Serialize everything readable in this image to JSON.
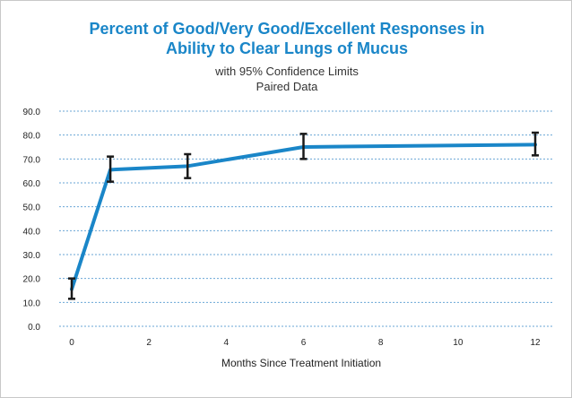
{
  "colors": {
    "line": "#1a86c8",
    "grid": "#6aa6d6",
    "error_bar": "#1a1a1a",
    "title": "#1a86c8"
  },
  "chart_data": {
    "type": "line",
    "title": "Percent of Good/Very Good/Excellent Responses in\nAbility to Clear Lungs of Mucus",
    "subtitle": "with 95% Confidence Limits\nPaired Data",
    "xlabel": "Months Since Treatment Initiation",
    "ylabel": "",
    "xlim": [
      0,
      12
    ],
    "ylim": [
      0,
      90
    ],
    "xticks": [
      "0",
      "2",
      "4",
      "6",
      "8",
      "10",
      "12"
    ],
    "yticks": [
      "0.0",
      "10.0",
      "20.0",
      "30.0",
      "40.0",
      "50.0",
      "60.0",
      "70.0",
      "80.0",
      "90.0"
    ],
    "grid": "horizontal dotted",
    "series": [
      {
        "x": [
          0,
          1,
          3,
          6,
          12
        ],
        "y": [
          15.5,
          65.5,
          67,
          75,
          76
        ],
        "ci_low": [
          11.5,
          60.5,
          62,
          70,
          71.5
        ],
        "ci_high": [
          20,
          71,
          72,
          80.5,
          81
        ]
      }
    ]
  }
}
